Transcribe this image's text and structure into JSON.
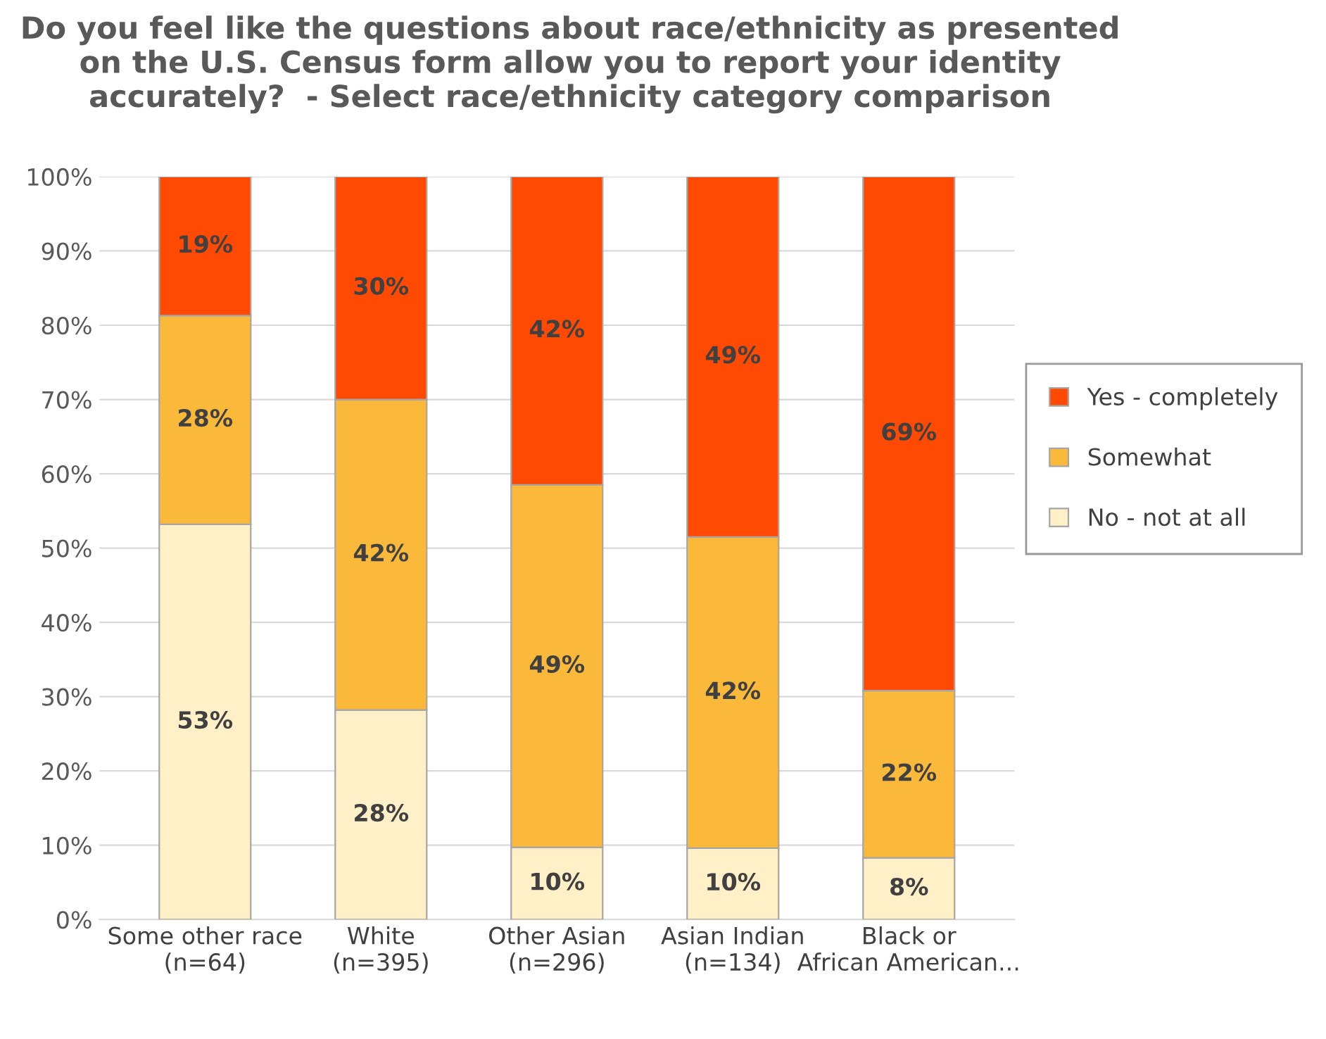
{
  "chart_data": {
    "type": "bar",
    "stacked": true,
    "title": "Do you feel like the questions about race/ethnicity as presented\non the U.S. Census form allow you to report your identity\naccurately?  - Select race/ethnicity category comparison",
    "categories": [
      "Some other race\n(n=64)",
      "White\n(n=395)",
      "Other Asian\n(n=296)",
      "Asian Indian\n(n=134)",
      "Black or\nAfrican American..."
    ],
    "series": [
      {
        "name": "No - not at all",
        "color": "#fff0c8",
        "values": [
          53.2,
          28.2,
          9.7,
          9.6,
          8.3
        ],
        "value_labels": [
          "53%",
          "28%",
          "10%",
          "10%",
          "8%"
        ]
      },
      {
        "name": "Somewhat",
        "color": "#fbb93b",
        "values": [
          28.1,
          41.8,
          48.8,
          41.9,
          22.5
        ],
        "value_labels": [
          "28%",
          "42%",
          "49%",
          "42%",
          "22%"
        ]
      },
      {
        "name": "Yes - completely",
        "color": "#fe4a02",
        "values": [
          18.7,
          30.0,
          41.5,
          48.5,
          69.2
        ],
        "value_labels": [
          "19%",
          "30%",
          "42%",
          "49%",
          "69%"
        ]
      }
    ],
    "ylim": [
      0,
      100
    ],
    "yticks": [
      {
        "value": 0,
        "label": "0%"
      },
      {
        "value": 10,
        "label": "10%"
      },
      {
        "value": 20,
        "label": "20%"
      },
      {
        "value": 30,
        "label": "30%"
      },
      {
        "value": 40,
        "label": "40%"
      },
      {
        "value": 50,
        "label": "50%"
      },
      {
        "value": 60,
        "label": "60%"
      },
      {
        "value": 70,
        "label": "70%"
      },
      {
        "value": 80,
        "label": "80%"
      },
      {
        "value": 90,
        "label": "90%"
      },
      {
        "value": 100,
        "label": "100%"
      }
    ],
    "grid": "y",
    "legend": "right"
  }
}
